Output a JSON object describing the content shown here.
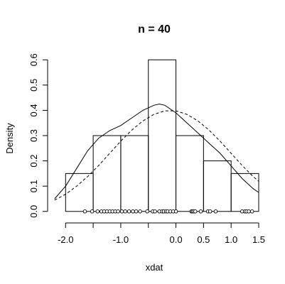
{
  "chart_data": {
    "type": "bar",
    "title": "n = 40",
    "xlabel": "xdat",
    "ylabel": "Density",
    "xlim": [
      -2.0,
      1.5
    ],
    "ylim": [
      0,
      0.6
    ],
    "x_ticks": [
      -2.0,
      -1.5,
      -1.0,
      -0.5,
      0.0,
      0.5,
      1.0,
      1.5
    ],
    "x_tick_labels": [
      "-2.0",
      "",
      "-1.0",
      "",
      "0.0",
      "0.5",
      "1.0",
      "1.5"
    ],
    "y_ticks": [
      0.0,
      0.1,
      0.2,
      0.3,
      0.4,
      0.5,
      0.6
    ],
    "y_tick_labels": [
      "0.0",
      "0.1",
      "0.2",
      "0.3",
      "0.4",
      "0.5",
      "0.6"
    ],
    "histogram": {
      "breaks": [
        -2.0,
        -1.5,
        -1.0,
        -0.5,
        0.0,
        0.5,
        1.0,
        1.5
      ],
      "density": [
        0.15,
        0.3,
        0.3,
        0.6,
        0.3,
        0.2,
        0.15
      ]
    },
    "kernel_density": {
      "x": [
        -2.2,
        -2.0,
        -1.8,
        -1.6,
        -1.4,
        -1.2,
        -1.0,
        -0.8,
        -0.6,
        -0.4,
        -0.3,
        -0.2,
        0.0,
        0.2,
        0.4,
        0.6,
        0.8,
        1.0,
        1.2,
        1.4,
        1.6
      ],
      "y": [
        0.05,
        0.1,
        0.17,
        0.24,
        0.29,
        0.32,
        0.34,
        0.37,
        0.4,
        0.42,
        0.425,
        0.42,
        0.39,
        0.35,
        0.31,
        0.27,
        0.23,
        0.18,
        0.13,
        0.09,
        0.06
      ]
    },
    "normal_density": {
      "x": [
        -2.2,
        -2.0,
        -1.8,
        -1.6,
        -1.4,
        -1.2,
        -1.0,
        -0.8,
        -0.6,
        -0.4,
        -0.2,
        0.0,
        0.2,
        0.4,
        0.6,
        0.8,
        1.0,
        1.2,
        1.4,
        1.6
      ],
      "y": [
        0.045,
        0.068,
        0.1,
        0.138,
        0.182,
        0.23,
        0.278,
        0.322,
        0.358,
        0.384,
        0.398,
        0.398,
        0.384,
        0.358,
        0.322,
        0.278,
        0.23,
        0.182,
        0.138,
        0.1
      ]
    },
    "rug": [
      -1.65,
      -1.52,
      -1.42,
      -1.35,
      -1.3,
      -1.25,
      -1.2,
      -1.15,
      -1.1,
      -1.05,
      -0.98,
      -0.92,
      -0.85,
      -0.78,
      -0.72,
      -0.65,
      -0.52,
      -0.42,
      -0.38,
      -0.3,
      -0.25,
      -0.22,
      -0.18,
      -0.15,
      -0.1,
      -0.05,
      0.0,
      0.28,
      0.3,
      0.32,
      0.35,
      0.45,
      0.58,
      0.62,
      0.72,
      1.2,
      1.25,
      1.28,
      1.32,
      1.38
    ]
  }
}
